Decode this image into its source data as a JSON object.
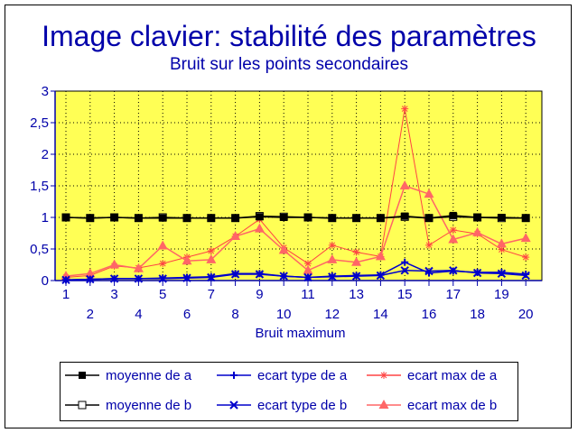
{
  "chart_data": {
    "type": "line",
    "title": "Image clavier: stabilité des paramètres",
    "subtitle": "Bruit sur les points secondaires",
    "xlabel": "Bruit maximum",
    "ylabel": "",
    "categories": [
      1,
      2,
      3,
      4,
      5,
      6,
      7,
      8,
      9,
      10,
      11,
      12,
      13,
      14,
      15,
      16,
      17,
      18,
      19,
      20
    ],
    "ylim": [
      0,
      3
    ],
    "yticks": [
      "0",
      "0,5",
      "1",
      "1,5",
      "2",
      "2,5",
      "3"
    ],
    "grid": true,
    "background": "#ffff55",
    "legend_position": "bottom",
    "series": [
      {
        "name": "moyenne de a",
        "color": "#000000",
        "marker": "filled-square",
        "values": [
          1.0,
          0.99,
          1.0,
          0.99,
          0.99,
          0.99,
          0.99,
          0.99,
          1.01,
          1.0,
          1.0,
          0.99,
          0.99,
          0.99,
          1.02,
          0.99,
          1.03,
          1.0,
          1.0,
          0.99
        ]
      },
      {
        "name": "moyenne de b",
        "color": "#000000",
        "marker": "open-square",
        "values": [
          1.0,
          0.99,
          1.0,
          0.99,
          1.0,
          0.99,
          0.99,
          0.99,
          1.02,
          1.01,
          1.0,
          0.99,
          0.99,
          0.99,
          1.01,
          0.99,
          1.01,
          1.0,
          0.99,
          0.99
        ]
      },
      {
        "name": "ecart type de a",
        "color": "#0000cc",
        "marker": "plus",
        "values": [
          0.01,
          0.02,
          0.03,
          0.03,
          0.04,
          0.05,
          0.06,
          0.11,
          0.11,
          0.07,
          0.05,
          0.07,
          0.08,
          0.09,
          0.29,
          0.12,
          0.15,
          0.13,
          0.13,
          0.1
        ]
      },
      {
        "name": "ecart type de b",
        "color": "#0000cc",
        "marker": "x",
        "values": [
          0.01,
          0.02,
          0.03,
          0.03,
          0.03,
          0.04,
          0.05,
          0.1,
          0.1,
          0.07,
          0.05,
          0.06,
          0.07,
          0.08,
          0.16,
          0.15,
          0.16,
          0.12,
          0.11,
          0.08
        ]
      },
      {
        "name": "ecart max de a",
        "color": "#ff4444",
        "marker": "star",
        "values": [
          0.05,
          0.08,
          0.23,
          0.2,
          0.27,
          0.37,
          0.47,
          0.7,
          0.97,
          0.52,
          0.27,
          0.56,
          0.45,
          0.38,
          2.72,
          0.56,
          0.8,
          0.74,
          0.49,
          0.37
        ]
      },
      {
        "name": "ecart max de b",
        "color": "#ff6666",
        "marker": "triangle",
        "values": [
          0.07,
          0.11,
          0.25,
          0.19,
          0.55,
          0.31,
          0.33,
          0.7,
          0.82,
          0.48,
          0.16,
          0.33,
          0.29,
          0.38,
          1.5,
          1.37,
          0.65,
          0.76,
          0.58,
          0.67
        ]
      }
    ]
  }
}
